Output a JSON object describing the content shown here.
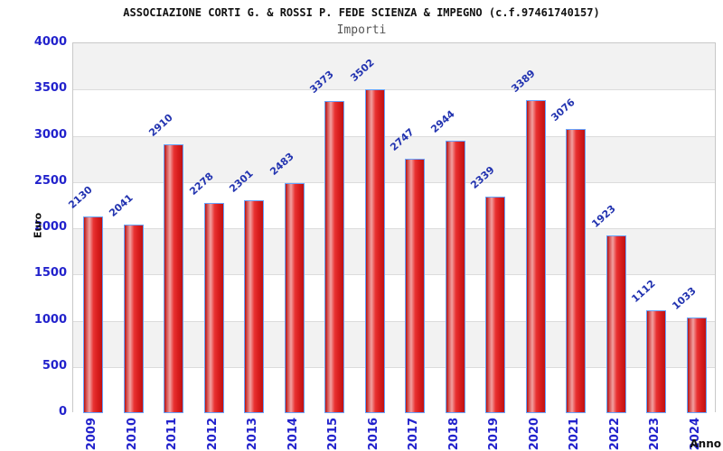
{
  "chart_data": {
    "type": "bar",
    "title": "ASSOCIAZIONE CORTI G. & ROSSI P. FEDE SCIENZA & IMPEGNO (c.f.97461740157)",
    "subtitle": "Importi",
    "xlabel": "Anno",
    "ylabel": "Euro",
    "categories": [
      "2009",
      "2010",
      "2011",
      "2012",
      "2013",
      "2014",
      "2015",
      "2016",
      "2017",
      "2018",
      "2019",
      "2020",
      "2021",
      "2022",
      "2023",
      "2024"
    ],
    "values": [
      2130,
      2041,
      2910,
      2278,
      2301,
      2483,
      3373,
      3502,
      2747,
      2944,
      2339,
      3389,
      3076,
      1923,
      1112,
      1033
    ],
    "ylim": [
      0,
      4000
    ],
    "ytick_interval": 500,
    "ytick_labels": [
      "0",
      "500",
      "1000",
      "1500",
      "2000",
      "2500",
      "3000",
      "3500",
      "4000"
    ],
    "grid": true,
    "legend_position": "none",
    "colors": {
      "bar_fill": "#e02020",
      "bar_border": "#66a3ff",
      "tick_label": "#2222cc",
      "value_label": "#2233b0",
      "band": "#f2f2f2",
      "gridline": "#dcdcdc",
      "plot_border": "#c8c8c8",
      "title": "#111111",
      "subtitle": "#555555"
    }
  }
}
